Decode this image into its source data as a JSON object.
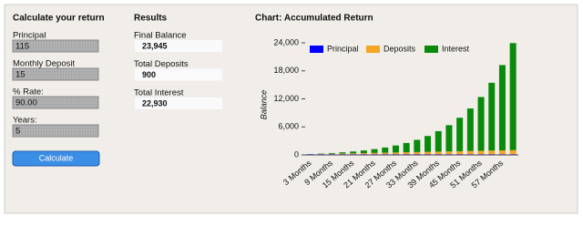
{
  "form": {
    "title": "Calculate your return",
    "fields": [
      {
        "label": "Principal",
        "value": "115"
      },
      {
        "label": "Monthly Deposit",
        "value": "15"
      },
      {
        "label": "% Rate:",
        "value": "90.00"
      },
      {
        "label": "Years:",
        "value": "5"
      }
    ],
    "button": "Calculate"
  },
  "results": {
    "title": "Results",
    "items": [
      {
        "label": "Final Balance",
        "value": "23,945"
      },
      {
        "label": "Total Deposits",
        "value": "900"
      },
      {
        "label": "Total Interest",
        "value": "22,930"
      }
    ]
  },
  "chart_data": {
    "type": "stacked_bar",
    "title": "Chart: Accumulated Return",
    "y_label": "Balance",
    "categories": [
      "3 Months",
      null,
      "9 Months",
      null,
      "15 Months",
      null,
      "21 Months",
      null,
      "27 Months",
      null,
      "33 Months",
      null,
      "39 Months",
      null,
      "45 Months",
      null,
      "51 Months",
      null,
      "57 Months",
      null
    ],
    "series": [
      {
        "name": "Principal",
        "color": "#0000ff",
        "values": [
          115,
          115,
          115,
          115,
          115,
          115,
          115,
          115,
          115,
          115,
          115,
          115,
          115,
          115,
          115,
          115,
          115,
          115,
          115,
          115
        ]
      },
      {
        "name": "Deposits",
        "color": "#f5a623",
        "values": [
          45,
          90,
          135,
          180,
          225,
          270,
          315,
          360,
          405,
          450,
          495,
          540,
          585,
          630,
          675,
          720,
          765,
          810,
          855,
          900
        ]
      },
      {
        "name": "Interest",
        "color": "#0a8a0a",
        "values": [
          31,
          81,
          154,
          255,
          392,
          573,
          808,
          1112,
          1500,
          1993,
          2616,
          3401,
          4388,
          5624,
          7171,
          9103,
          11515,
          14521,
          18267,
          22930
        ]
      }
    ],
    "ylim": [
      0,
      24000
    ],
    "yticks": [
      0,
      {
        "value": 6000,
        "label": "6,000"
      },
      {
        "value": 12000,
        "label": "12,000"
      },
      {
        "value": 18000,
        "label": "18,000"
      },
      {
        "value": 24000,
        "label": "24,000"
      }
    ],
    "grid": false,
    "legend": "top"
  }
}
